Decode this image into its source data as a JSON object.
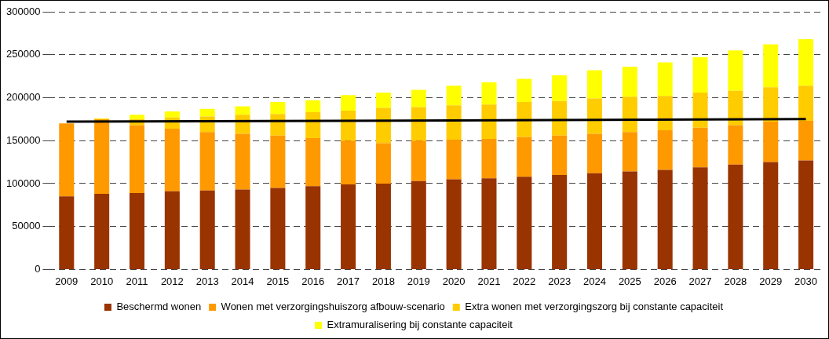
{
  "chart_data": {
    "type": "bar",
    "stacked": true,
    "categories": [
      "2009",
      "2010",
      "2011",
      "2012",
      "2013",
      "2014",
      "2015",
      "2016",
      "2017",
      "2018",
      "2019",
      "2020",
      "2021",
      "2022",
      "2023",
      "2024",
      "2025",
      "2026",
      "2027",
      "2028",
      "2029",
      "2030"
    ],
    "series": [
      {
        "name": "Beschermd wonen",
        "color": "#993300",
        "values": [
          85000,
          88000,
          89000,
          91000,
          92000,
          93000,
          95000,
          97000,
          99000,
          100000,
          103000,
          105000,
          106000,
          108000,
          110000,
          112000,
          114000,
          116000,
          119000,
          122000,
          125000,
          127000
        ]
      },
      {
        "name": "Wonen met verzorgingshuiszorg afbouw-scenario",
        "color": "#ff9900",
        "values": [
          85000,
          87000,
          79000,
          73000,
          68000,
          65000,
          61000,
          56000,
          51000,
          47000,
          47000,
          46000,
          46000,
          46000,
          46000,
          46000,
          46000,
          46000,
          46000,
          46000,
          47000,
          46000
        ]
      },
      {
        "name": "Extra wonen met verzorgingszorg bij constante capaciteit",
        "color": "#ffcc00",
        "values": [
          0,
          null,
          7000,
          13000,
          18000,
          22000,
          25000,
          30000,
          35000,
          41000,
          39000,
          40000,
          40000,
          41000,
          40000,
          41000,
          41000,
          40000,
          41000,
          40000,
          40000,
          41000
        ]
      },
      {
        "name": "Extramuralisering bij constante capaciteit",
        "color": "#ffff00",
        "values": [
          0,
          1000,
          5000,
          7000,
          9000,
          10000,
          14000,
          14000,
          18000,
          18000,
          20000,
          23000,
          26000,
          27000,
          30000,
          33000,
          35000,
          39000,
          41000,
          47000,
          50000,
          54000
        ]
      },
      {
        "type": "line",
        "color": "#000000",
        "values": [
          172000,
          null,
          null,
          null,
          null,
          null,
          null,
          null,
          null,
          null,
          null,
          null,
          null,
          null,
          null,
          null,
          null,
          null,
          null,
          null,
          null,
          175000
        ]
      }
    ],
    "ylim": [
      0,
      300000
    ],
    "yticks": [
      0,
      50000,
      100000,
      150000,
      200000,
      250000,
      300000
    ],
    "grid": "y",
    "line_style": "solid",
    "marker": "none",
    "legend": "bottom"
  }
}
